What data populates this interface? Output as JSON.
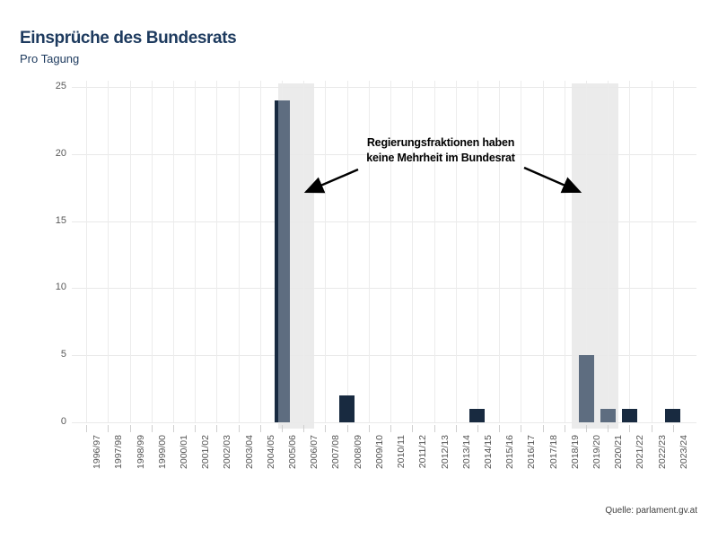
{
  "header": {
    "title": "Einsprüche des Bundesrats",
    "subtitle": "Pro Tagung"
  },
  "annotation": {
    "line1": "Regierungsfraktionen haben",
    "line2": "keine Mehrheit im Bundesrat"
  },
  "source": "Quelle: parlament.gv.at",
  "chart_data": {
    "type": "bar",
    "title": "Einsprüche des Bundesrats",
    "subtitle": "Pro Tagung",
    "categories": [
      "1996/97",
      "1997/98",
      "1998/99",
      "1999/00",
      "2000/01",
      "2001/02",
      "2002/03",
      "2003/04",
      "2004/05",
      "2005/06",
      "2006/07",
      "2007/08",
      "2008/09",
      "2009/10",
      "2010/11",
      "2011/12",
      "2012/13",
      "2013/14",
      "2014/15",
      "2015/16",
      "2016/17",
      "2017/18",
      "2018/19",
      "2019/20",
      "2020/21",
      "2021/22",
      "2022/23",
      "2023/24"
    ],
    "values": [
      0,
      0,
      0,
      0,
      0,
      0,
      0,
      0,
      0,
      24,
      0,
      0,
      2,
      0,
      0,
      0,
      0,
      0,
      1,
      0,
      0,
      0,
      0,
      5,
      1,
      1,
      0,
      1
    ],
    "xlabel": "",
    "ylabel": "",
    "ylim": [
      0,
      25
    ],
    "yticks": [
      0,
      5,
      10,
      15,
      20,
      25
    ],
    "grid": true,
    "legend": false,
    "annotation_text": "Regierungsfraktionen haben keine Mehrheit im Bundesrat",
    "highlight_bands": [
      {
        "from": "2005/06",
        "to": "2006/07",
        "label": "Regierungsfraktionen haben keine Mehrheit im Bundesrat"
      },
      {
        "from": "2019/20",
        "to": "2020/21",
        "label": "Regierungsfraktionen haben keine Mehrheit im Bundesrat"
      }
    ],
    "colors": {
      "bar": "#182a40",
      "bar_highlighted": "#5e6d80",
      "band": "#ebebeb",
      "title": "#1d3a5e",
      "axis_text": "#595959"
    },
    "source": "Quelle: parlament.gv.at"
  }
}
